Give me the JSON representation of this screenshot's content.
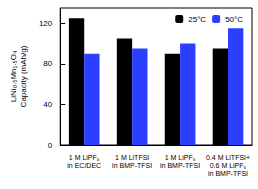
{
  "chart_data": {
    "type": "bar",
    "ylabel": "LiNi₀.₅Mn₁.₅O₄\nCapacity (mAh/g)",
    "categories": [
      "1 M LiPF₆\nin EC/DEC",
      "1 M LiTFSI\nin BMP-TFSI",
      "1 M LiPF₆\nin BMP-TFSI",
      "0.4 M LiTFSI+\n0.6 M LiPF₆\nin BMP-TFSI"
    ],
    "series": [
      {
        "name": "25°C",
        "color": "#000000",
        "values": [
          125,
          105,
          90,
          95
        ]
      },
      {
        "name": "50°C",
        "color": "#2a3fff",
        "values": [
          90,
          95,
          100,
          115
        ]
      }
    ],
    "ylim": [
      0,
      135
    ],
    "yticks": [
      0,
      40,
      80,
      120
    ],
    "grid": false,
    "legend": "top-right"
  }
}
